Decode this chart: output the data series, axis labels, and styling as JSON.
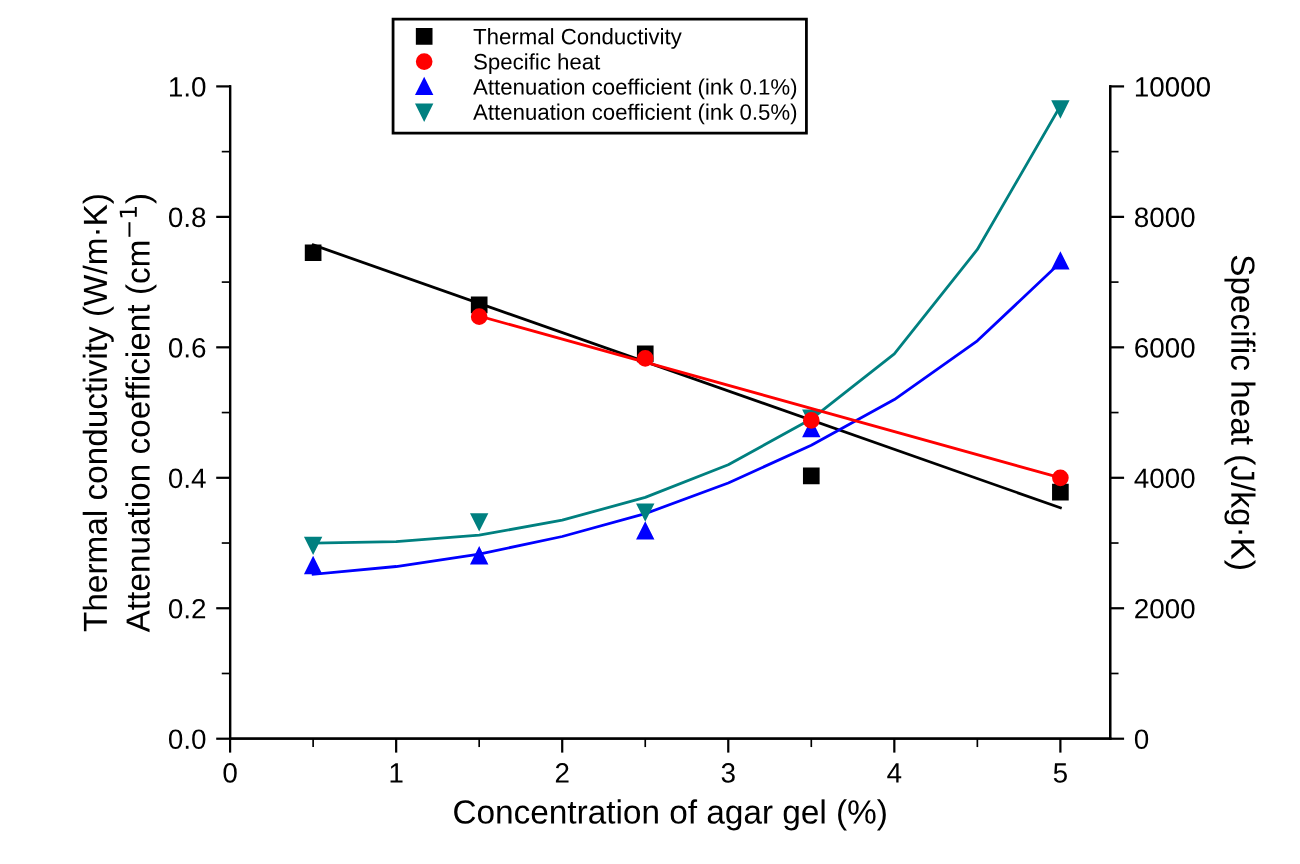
{
  "chart_data": {
    "type": "scatter",
    "xlabel": "Concentration of agar gel (%)",
    "ylabel": "Thermal conductivity (W/m·K)\nAttenuation coefficient (cm$^{−1}$)",
    "y2label": "Specific heat (J/kg·K)",
    "xlim": [
      0,
      5.3
    ],
    "xticks": [
      0,
      1,
      2,
      3,
      4,
      5
    ],
    "ylim": [
      0,
      1.0
    ],
    "yticks": [
      {
        "value": 0,
        "label": "0.0"
      },
      {
        "value": 0.2,
        "label": "0.2"
      },
      {
        "value": 0.4,
        "label": "0.4"
      },
      {
        "value": 0.6,
        "label": "0.6"
      },
      {
        "value": 0.8,
        "label": "0.8"
      },
      {
        "value": 1,
        "label": "1.0"
      }
    ],
    "y2lim": [
      0,
      10000
    ],
    "y2ticks": [
      0,
      2000,
      4000,
      6000,
      8000,
      10000
    ],
    "grid": false,
    "legend": "top",
    "x": [
      0.5,
      1.5,
      2.5,
      3.5,
      5
    ],
    "series": [
      {
        "name": "Thermal Conductivity",
        "color": "#000000",
        "marker": "square",
        "values": [
          0.745,
          0.665,
          0.59,
          0.403,
          0.378
        ]
      },
      {
        "name": "Specific heat",
        "color": "#ff0000",
        "marker": "circle",
        "axis": "y2",
        "x": [
          1.5,
          2.5,
          3.5,
          5
        ],
        "values": [
          6470,
          5830,
          4880,
          4000
        ]
      },
      {
        "name": "Attenuation coefficient (ink 0.1%)",
        "color": "#0000ff",
        "marker": "triangle",
        "values": [
          0.265,
          0.28,
          0.318,
          0.475,
          0.732
        ]
      },
      {
        "name": "Attenuation coefficient (ink 0.5%)",
        "color": "#008080",
        "marker": "triangle_down",
        "values": [
          0.297,
          0.333,
          0.348,
          0.492,
          0.966
        ]
      },
      {
        "type": "line",
        "color": "#000000",
        "x": [
          0.5,
          5
        ],
        "values": [
          0.757,
          0.354
        ]
      },
      {
        "type": "line",
        "color": "#ff0000",
        "axis": "y2",
        "x": [
          1.5,
          5
        ],
        "values": [
          6480,
          4000
        ]
      },
      {
        "type": "line",
        "color": "#0000ff",
        "x": [
          0.5,
          1.0,
          1.5,
          2.0,
          2.5,
          3.0,
          3.5,
          4.0,
          4.5,
          5.0
        ],
        "values": [
          0.252,
          0.264,
          0.283,
          0.31,
          0.345,
          0.392,
          0.45,
          0.52,
          0.61,
          0.73
        ]
      },
      {
        "type": "line",
        "color": "#008080",
        "x": [
          0.5,
          1.0,
          1.5,
          2.0,
          2.5,
          3.0,
          3.5,
          4.0,
          4.5,
          5.0
        ],
        "values": [
          0.3,
          0.302,
          0.312,
          0.335,
          0.37,
          0.42,
          0.49,
          0.59,
          0.75,
          0.97
        ]
      }
    ]
  }
}
